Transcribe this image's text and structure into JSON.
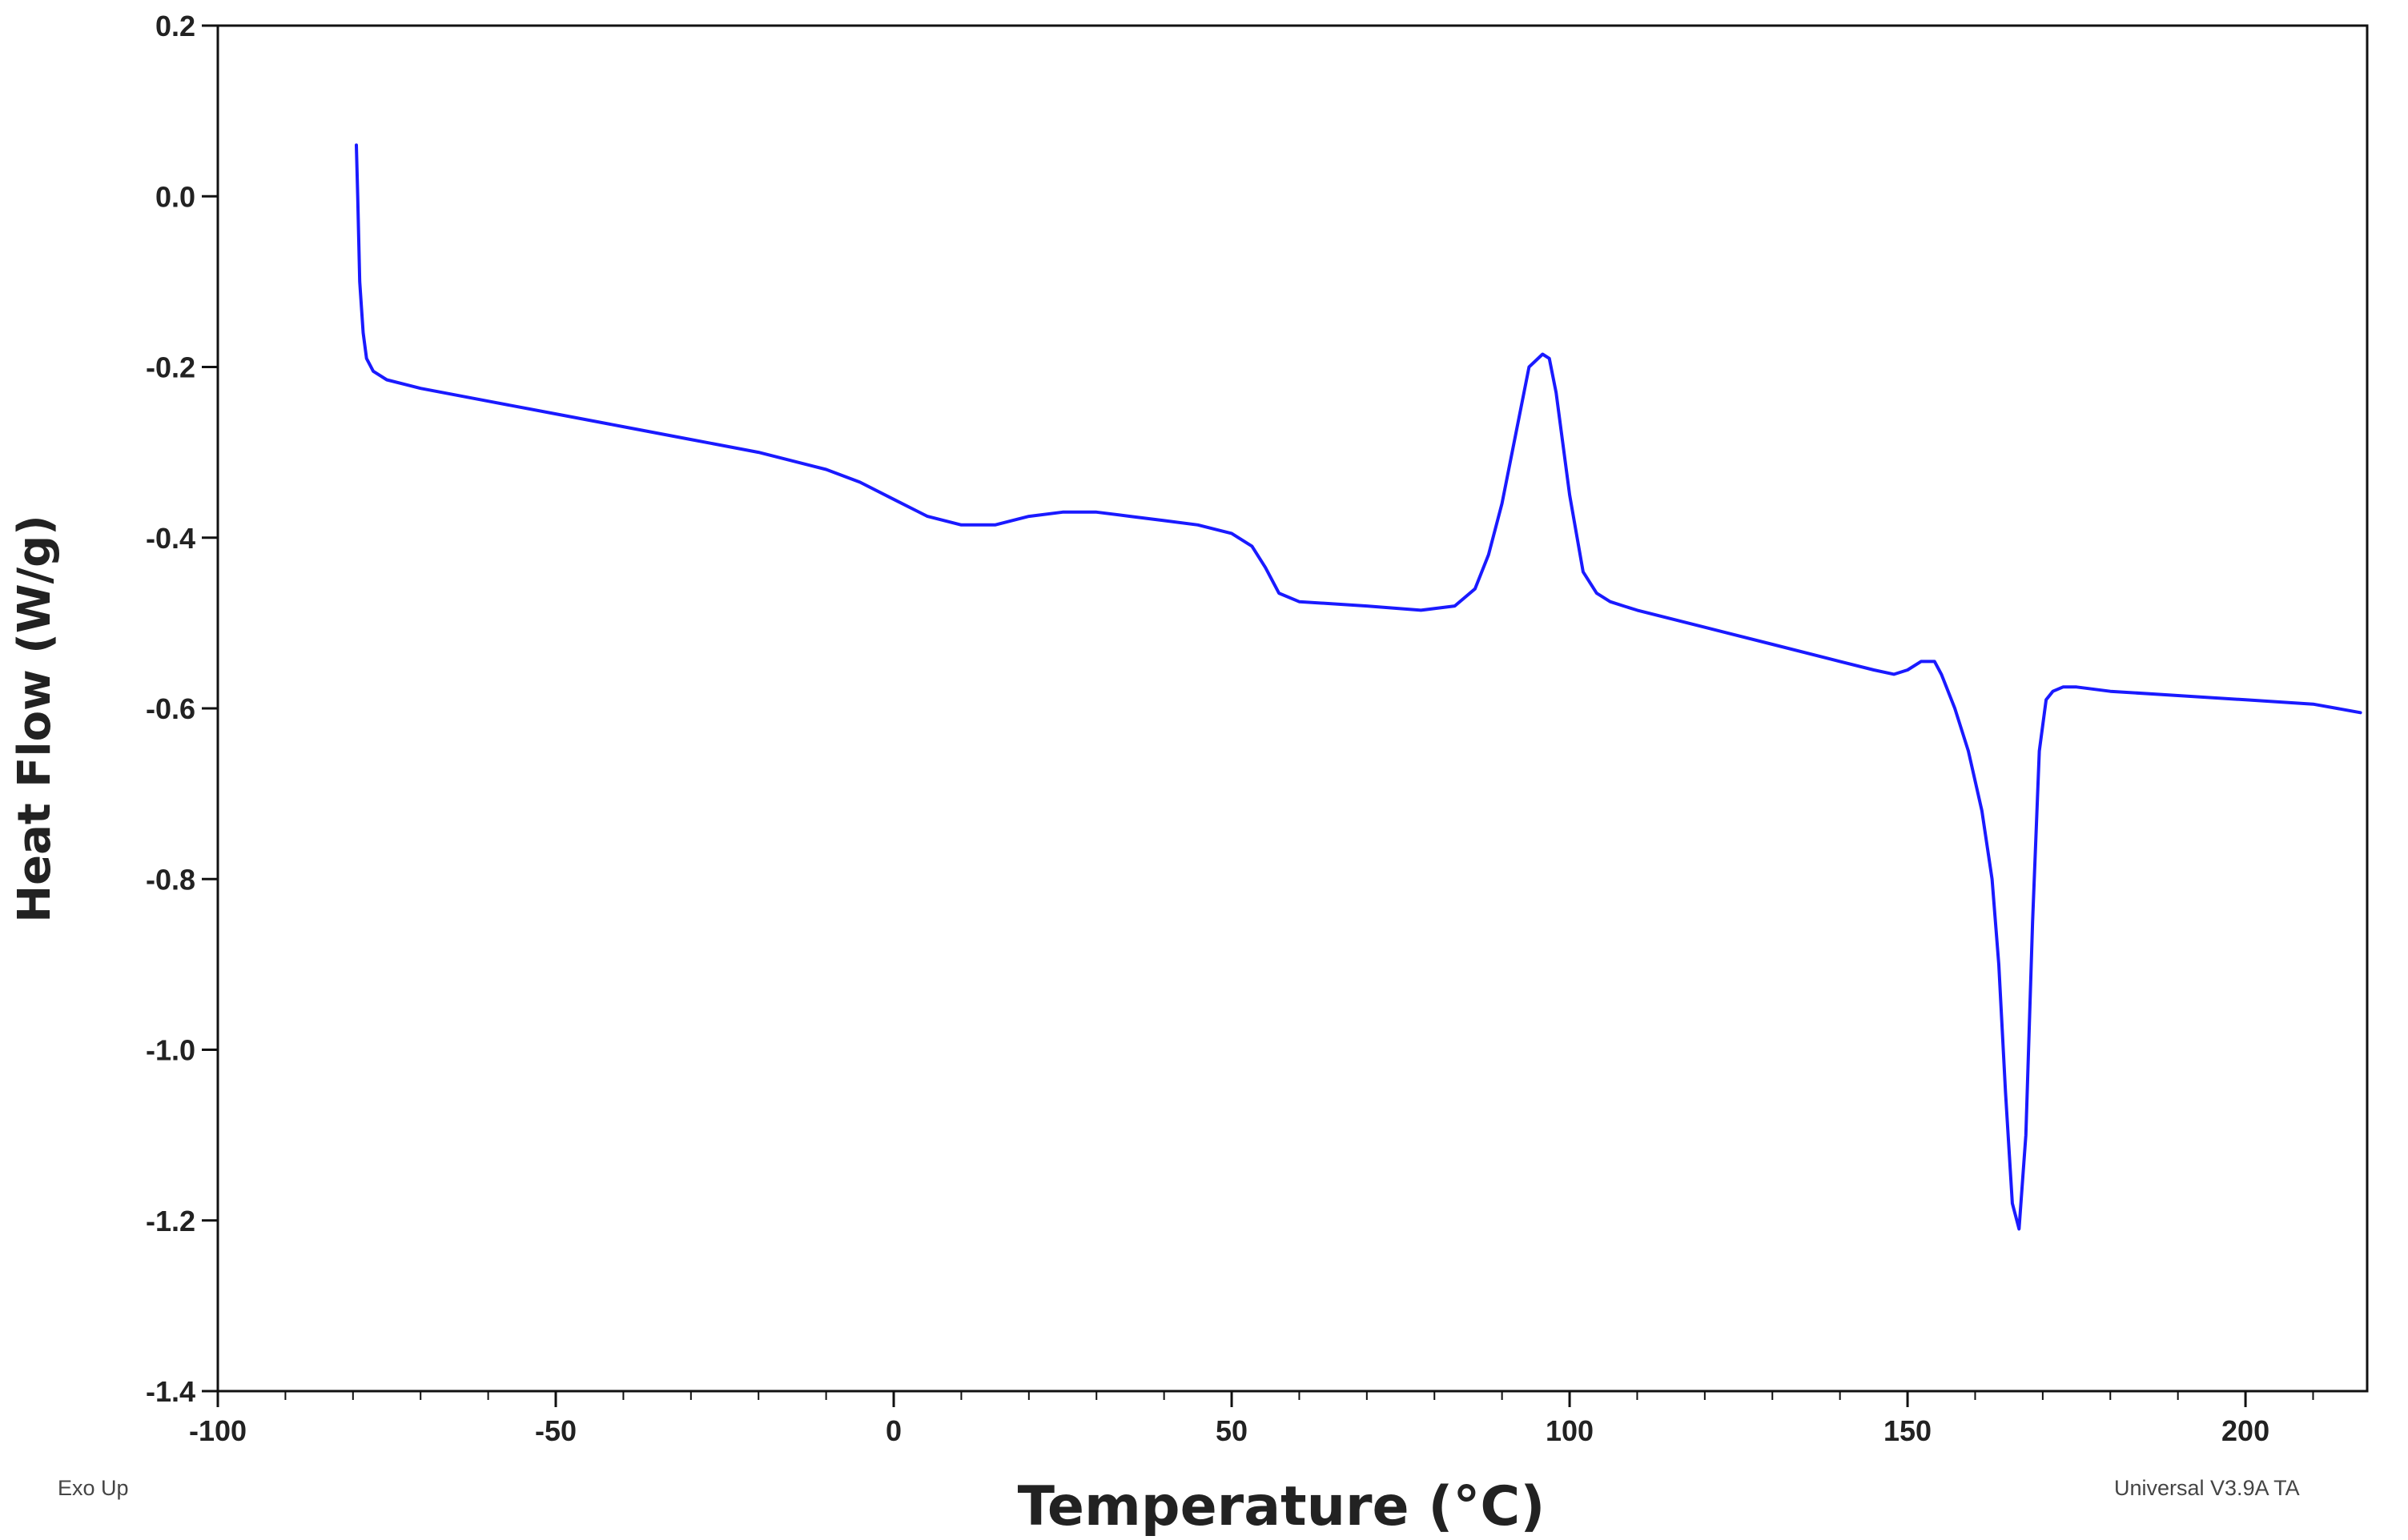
{
  "chart_data": {
    "type": "line",
    "title": "",
    "xlabel": "Temperature (°C)",
    "ylabel": "Heat Flow (W/g)",
    "xlim": [
      -100,
      218
    ],
    "ylim": [
      -1.4,
      0.2
    ],
    "x_ticks": [
      -100,
      -50,
      0,
      50,
      100,
      150,
      200
    ],
    "x_tick_labels": [
      "-100",
      "-50",
      "0",
      "50",
      "100",
      "150",
      "200"
    ],
    "x_minor_step": 10,
    "y_ticks": [
      0.2,
      0.0,
      -0.2,
      -0.4,
      -0.6,
      -0.8,
      -1.0,
      -1.2,
      -1.4
    ],
    "y_tick_labels": [
      "0.2",
      "0.0",
      "-0.2",
      "-0.4",
      "-0.6",
      "-0.8",
      "-1.0",
      "-1.2",
      "-1.4"
    ],
    "grid": false,
    "legend": "none",
    "line_color": "#1a1aff",
    "series": [
      {
        "x": [
          -79.5,
          -79.3,
          -79.0,
          -78.5,
          -78.0,
          -77.0,
          -76.0,
          -75.0,
          -70.0,
          -60.0,
          -50.0,
          -40.0,
          -30.0,
          -20.0,
          -10.0,
          -5.0,
          0.0,
          5.0,
          10.0,
          15.0,
          20.0,
          25.0,
          30.0,
          35.0,
          40.0,
          45.0,
          50.0,
          53.0,
          55.0,
          57.0,
          60.0,
          70.0,
          78.0,
          83.0,
          86.0,
          88.0,
          90.0,
          92.0,
          94.0,
          96.0,
          97.0,
          98.0,
          100.0,
          102.0,
          104.0,
          106.0,
          108.0,
          110.0,
          120.0,
          130.0,
          140.0,
          145.0,
          148.0,
          150.0,
          152.0,
          154.0,
          155.0,
          157.0,
          159.0,
          161.0,
          162.5,
          163.5,
          164.5,
          165.5,
          166.5,
          167.5,
          168.5,
          169.5,
          170.5,
          171.5,
          173.0,
          175.0,
          180.0,
          190.0,
          200.0,
          210.0,
          217.0
        ],
        "y": [
          0.06,
          0.0,
          -0.1,
          -0.16,
          -0.19,
          -0.205,
          -0.21,
          -0.215,
          -0.225,
          -0.24,
          -0.255,
          -0.27,
          -0.285,
          -0.3,
          -0.32,
          -0.335,
          -0.355,
          -0.375,
          -0.385,
          -0.385,
          -0.375,
          -0.37,
          -0.37,
          -0.375,
          -0.38,
          -0.385,
          -0.395,
          -0.41,
          -0.435,
          -0.465,
          -0.475,
          -0.48,
          -0.485,
          -0.48,
          -0.46,
          -0.42,
          -0.36,
          -0.28,
          -0.2,
          -0.185,
          -0.19,
          -0.23,
          -0.35,
          -0.44,
          -0.465,
          -0.475,
          -0.48,
          -0.485,
          -0.505,
          -0.525,
          -0.545,
          -0.555,
          -0.56,
          -0.555,
          -0.545,
          -0.545,
          -0.56,
          -0.6,
          -0.65,
          -0.72,
          -0.8,
          -0.9,
          -1.05,
          -1.18,
          -1.21,
          -1.1,
          -0.85,
          -0.65,
          -0.59,
          -0.58,
          -0.575,
          -0.575,
          -0.58,
          -0.585,
          -0.59,
          -0.595,
          -0.605
        ]
      }
    ]
  },
  "footer": {
    "left_note": "Exo Up",
    "right_note": "Universal V3.9A  TA"
  },
  "colors": {
    "axis": "#111111",
    "line": "#1a1aff"
  }
}
